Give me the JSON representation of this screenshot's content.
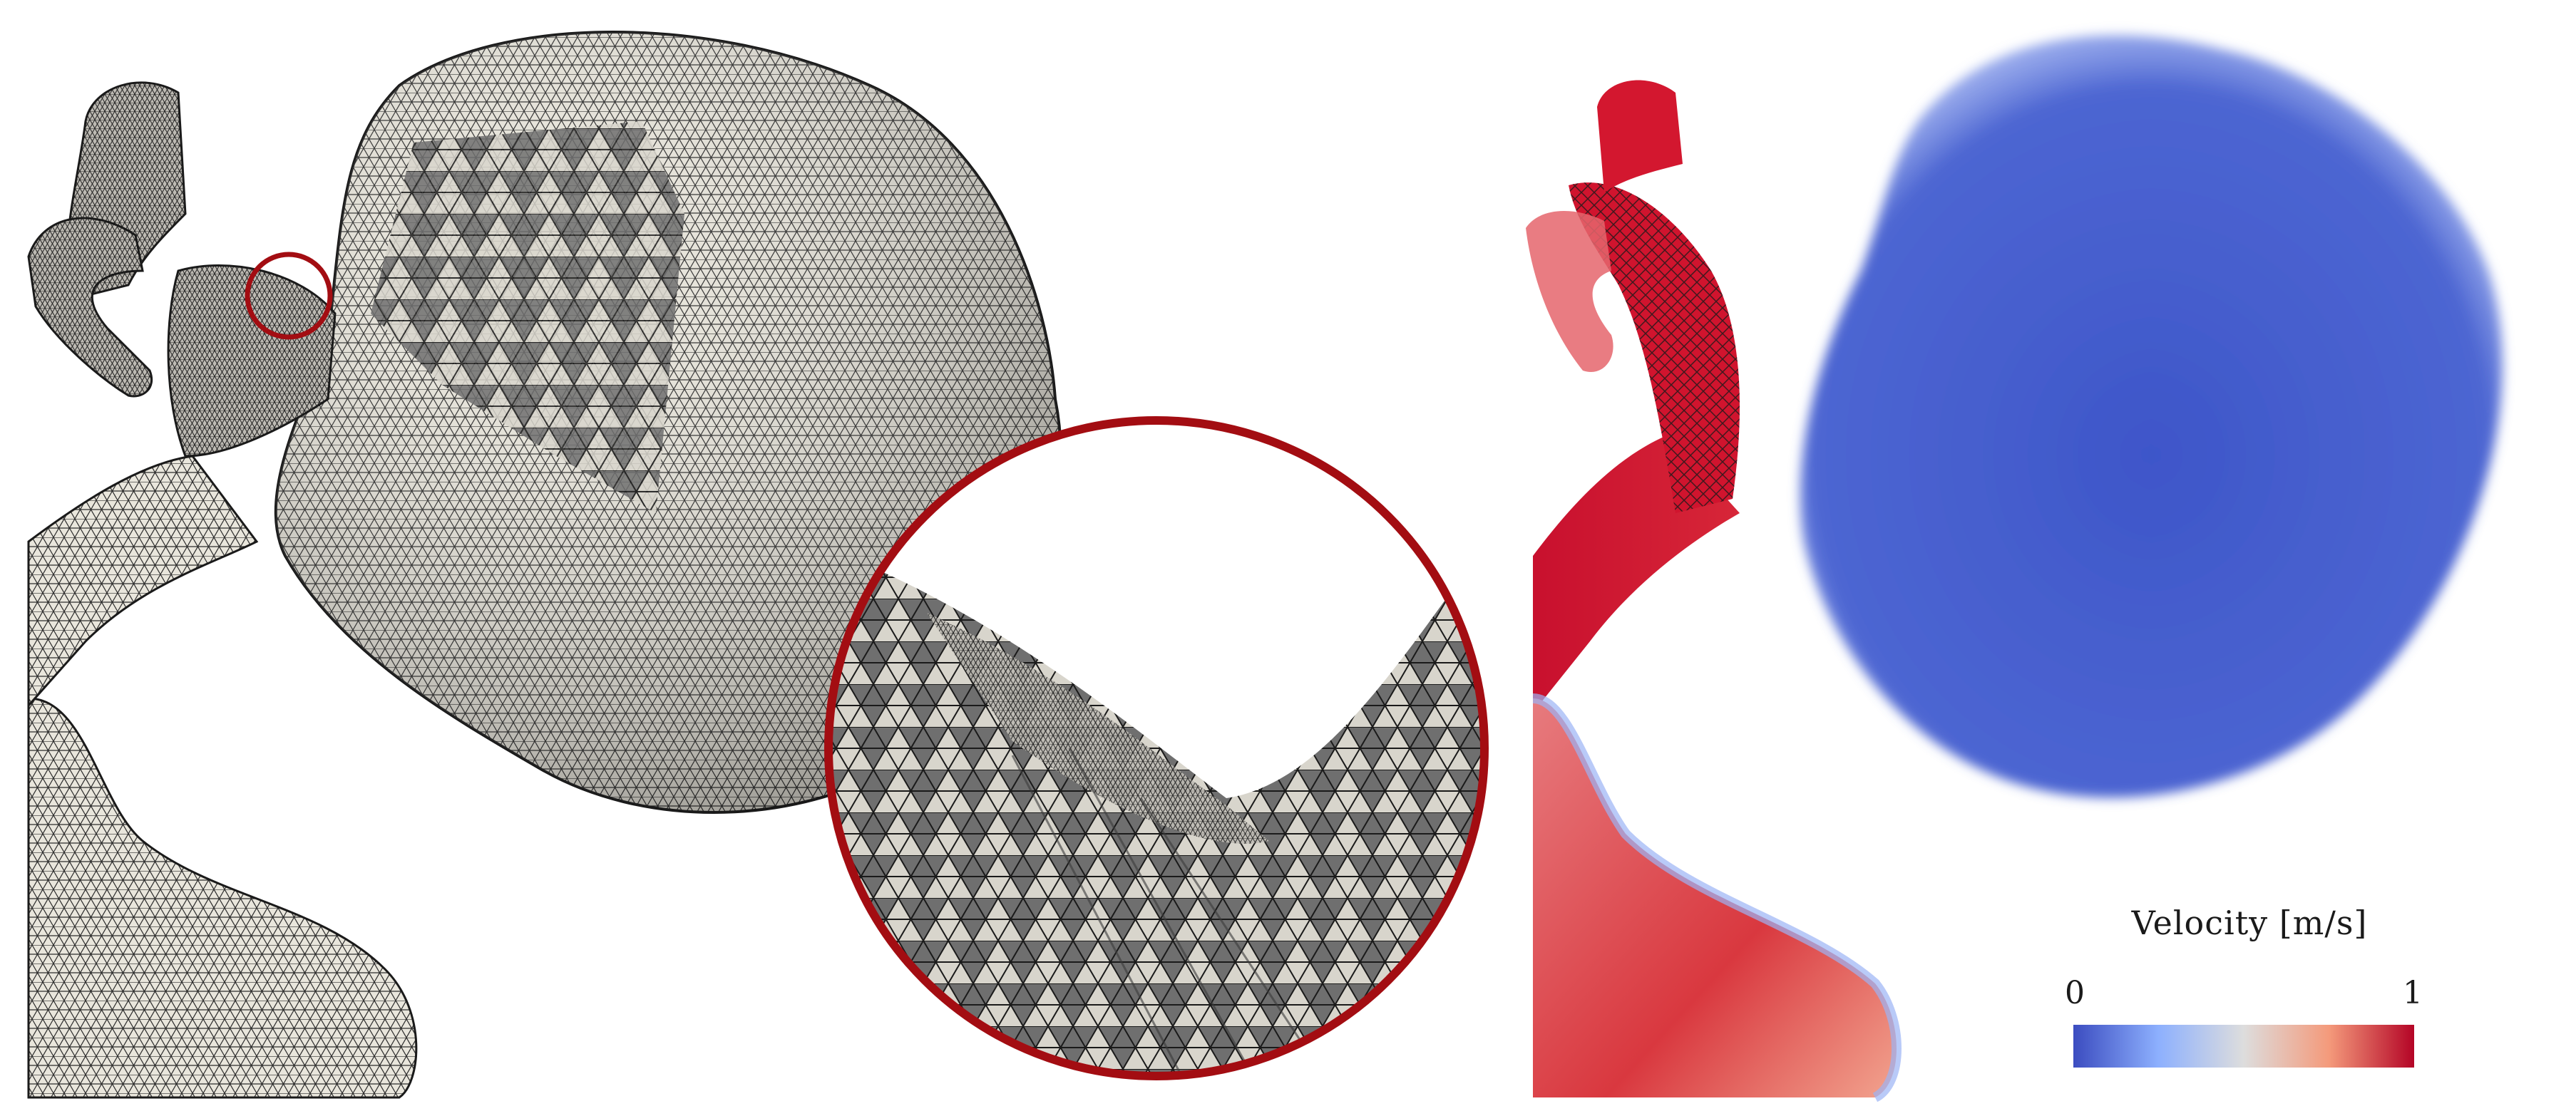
{
  "figure": {
    "left_panel": {
      "subject": "surface-mesh-aneurysm",
      "zoom_ring_color": "#a30d12",
      "mesh_fill": "#ece9df",
      "mesh_line": "#1e1e1e"
    },
    "right_panel": {
      "subject": "velocity-field-aneurysm",
      "legend": {
        "title": "Velocity [m/s]",
        "min_label": "0",
        "max_label": "1",
        "colormap": [
          "#3b4cc0",
          "#8db0fe",
          "#dddddd",
          "#f49a7b",
          "#b40426"
        ]
      }
    }
  }
}
